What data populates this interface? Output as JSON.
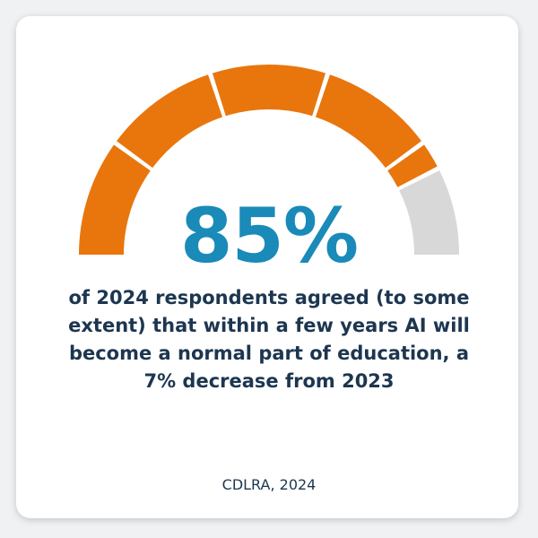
{
  "stat": {
    "value_text": "85%",
    "percent": 85,
    "description": "of 2024 respondents agreed (to some extent) that within a few years AI will become a normal part of education, a 7% decrease from 2023"
  },
  "source": "CDLRA, 2024",
  "gauge": {
    "segments": 5,
    "filled_percent": 85
  },
  "colors": {
    "filled": "#e8760d",
    "empty": "#d8d8d8",
    "stat_text": "#1a8ab8",
    "body_text": "#1d3650",
    "background": "#f0f1f3",
    "card": "#ffffff"
  }
}
